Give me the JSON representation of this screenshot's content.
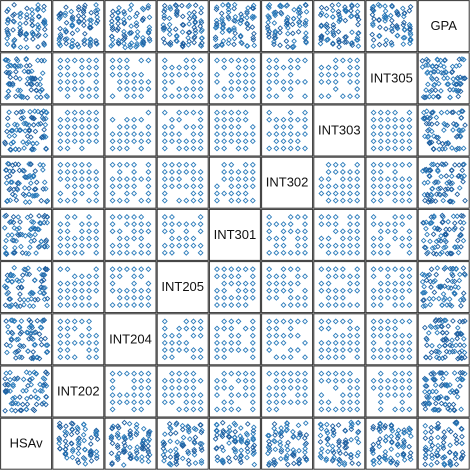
{
  "chart_data": {
    "type": "scatter",
    "variables": [
      "HSAv",
      "INT202",
      "INT204",
      "INT205",
      "INT301",
      "INT302",
      "INT303",
      "INT305",
      "GPA"
    ],
    "grid": false,
    "marker": "diamond",
    "colors": {
      "point": "#2b7bba",
      "point_dense": "#1f5fa0",
      "border": "#333333",
      "label": "#111111"
    },
    "n_points_per_panel_approx": 60
  }
}
